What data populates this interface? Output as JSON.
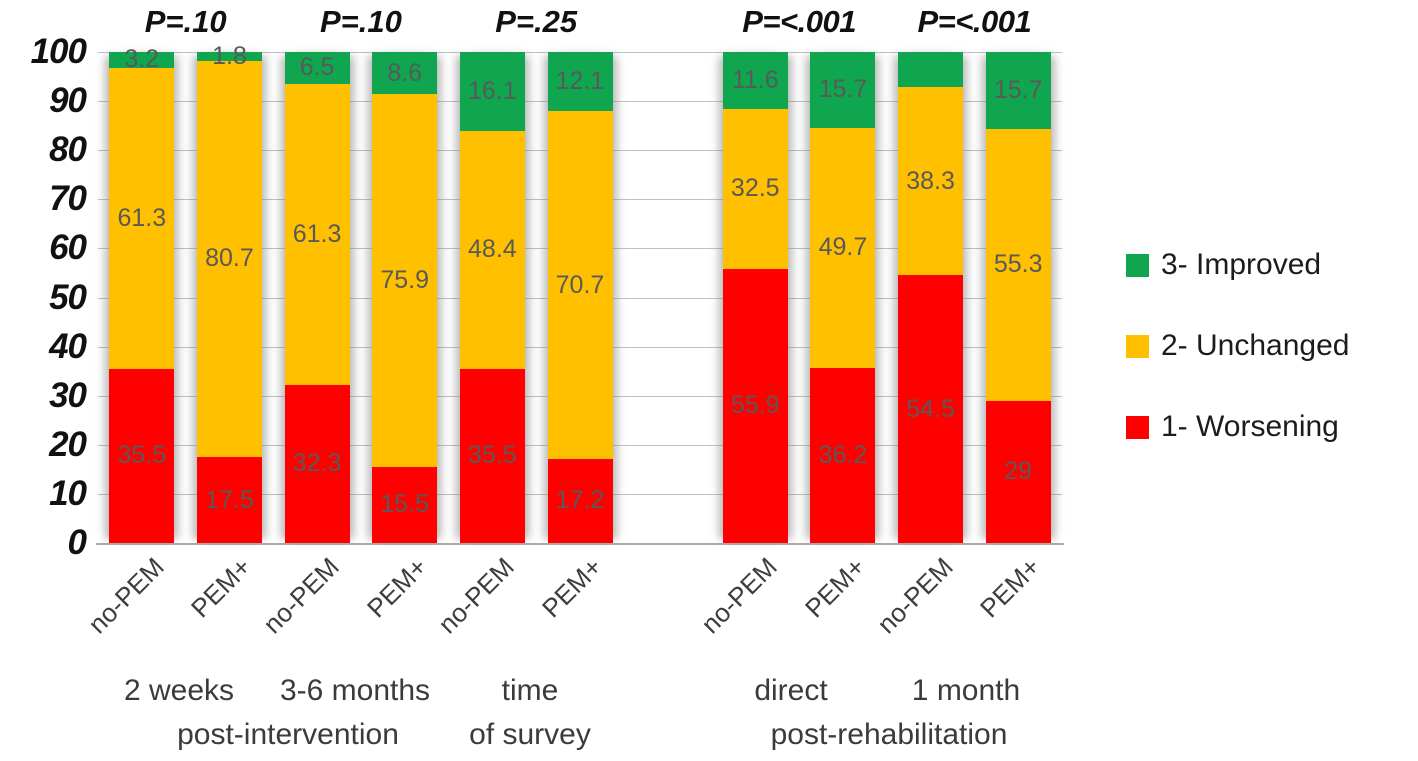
{
  "chart_data": {
    "type": "bar",
    "stacked": true,
    "ylim": [
      0,
      100
    ],
    "yticks": [
      0,
      10,
      20,
      30,
      40,
      50,
      60,
      70,
      80,
      90,
      100
    ],
    "grid": true,
    "legend_position": "right",
    "legend": [
      {
        "key": "improved",
        "label": "3- Improved",
        "color": "#10A650"
      },
      {
        "key": "unchanged",
        "label": "2- Unchanged",
        "color": "#FFC000"
      },
      {
        "key": "worsening",
        "label": "1- Worsening",
        "color": "#FF0000"
      }
    ],
    "value_label_color": "#595959",
    "p_values": [
      {
        "text": "P=.10",
        "slots": [
          0,
          1
        ],
        "emphasis": false
      },
      {
        "text": "P=.10",
        "slots": [
          2,
          3
        ],
        "emphasis": false
      },
      {
        "text": "P=.25",
        "slots": [
          4,
          5
        ],
        "emphasis": false
      },
      {
        "text": "P=<.001",
        "slots": [
          7,
          8
        ],
        "emphasis": true
      },
      {
        "text": "P=<.001",
        "slots": [
          9,
          10
        ],
        "emphasis": true
      }
    ],
    "bars": [
      {
        "slot": 0,
        "tick": "no-PEM",
        "segments": [
          {
            "series": "worsening",
            "value": 35.5,
            "label": "35.5"
          },
          {
            "series": "unchanged",
            "value": 61.3,
            "label": "61.3"
          },
          {
            "series": "improved",
            "value": 3.2,
            "label": "3.2"
          }
        ]
      },
      {
        "slot": 1,
        "tick": "PEM+",
        "segments": [
          {
            "series": "worsening",
            "value": 17.5,
            "label": "17.5"
          },
          {
            "series": "unchanged",
            "value": 80.7,
            "label": "80.7"
          },
          {
            "series": "improved",
            "value": 1.8,
            "label": "1.8"
          }
        ]
      },
      {
        "slot": 2,
        "tick": "no-PEM",
        "segments": [
          {
            "series": "worsening",
            "value": 32.3,
            "label": "32.3"
          },
          {
            "series": "unchanged",
            "value": 61.3,
            "label": "61.3"
          },
          {
            "series": "improved",
            "value": 6.5,
            "label": "6.5"
          }
        ]
      },
      {
        "slot": 3,
        "tick": "PEM+",
        "segments": [
          {
            "series": "worsening",
            "value": 15.5,
            "label": "15.5"
          },
          {
            "series": "unchanged",
            "value": 75.9,
            "label": "75.9"
          },
          {
            "series": "improved",
            "value": 8.6,
            "label": "8.6"
          }
        ]
      },
      {
        "slot": 4,
        "tick": "no-PEM",
        "segments": [
          {
            "series": "worsening",
            "value": 35.5,
            "label": "35.5"
          },
          {
            "series": "unchanged",
            "value": 48.4,
            "label": "48.4"
          },
          {
            "series": "improved",
            "value": 16.1,
            "label": "16.1"
          }
        ]
      },
      {
        "slot": 5,
        "tick": "PEM+",
        "segments": [
          {
            "series": "worsening",
            "value": 17.2,
            "label": "17.2"
          },
          {
            "series": "unchanged",
            "value": 70.7,
            "label": "70.7"
          },
          {
            "series": "improved",
            "value": 12.1,
            "label": "12.1"
          }
        ]
      },
      {
        "slot": 7,
        "tick": "no-PEM",
        "segments": [
          {
            "series": "worsening",
            "value": 55.9,
            "label": "55.9"
          },
          {
            "series": "unchanged",
            "value": 32.5,
            "label": "32.5"
          },
          {
            "series": "improved",
            "value": 11.6,
            "label": "11.6"
          }
        ]
      },
      {
        "slot": 8,
        "tick": "PEM+",
        "segments": [
          {
            "series": "worsening",
            "value": 36.2,
            "label": "36.2"
          },
          {
            "series": "unchanged",
            "value": 49.7,
            "label": "49.7"
          },
          {
            "series": "improved",
            "value": 15.7,
            "label": "15.7"
          }
        ]
      },
      {
        "slot": 9,
        "tick": "no-PEM",
        "segments": [
          {
            "series": "worsening",
            "value": 54.5,
            "label": "54.5"
          },
          {
            "series": "unchanged",
            "value": 38.3,
            "label": "38.3"
          },
          {
            "series": "improved",
            "value": 7.2,
            "label": ""
          }
        ]
      },
      {
        "slot": 10,
        "tick": "PEM+",
        "segments": [
          {
            "series": "worsening",
            "value": 29,
            "label": "29"
          },
          {
            "series": "unchanged",
            "value": 55.3,
            "label": "55.3"
          },
          {
            "series": "improved",
            "value": 15.7,
            "label": "15.7"
          }
        ]
      }
    ],
    "group_labels": {
      "g1_line1": "2 weeks",
      "g2_line1": "3-6 months",
      "g12_line2": "post-intervention",
      "g3_line1": "time",
      "g3_line2": "of survey",
      "g4_line1": "direct",
      "g5_line1": "1 month",
      "g45_line2": "post-rehabilitation"
    }
  }
}
